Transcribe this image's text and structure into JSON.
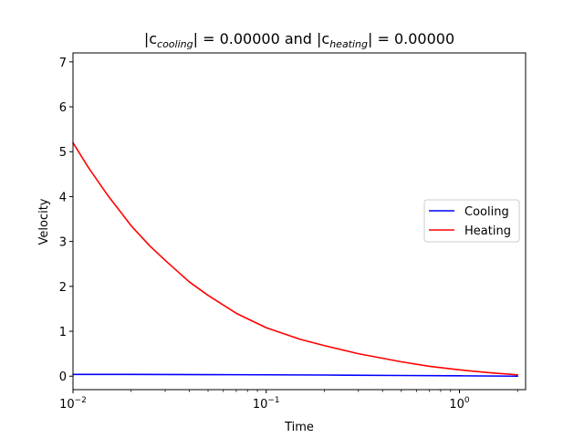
{
  "chart_data": {
    "type": "line",
    "title": {
      "prefix": "|c",
      "sub1": "cooling",
      "mid": "| = 0.00000 and |c",
      "sub2": "heating",
      "suffix": "| = 0.00000"
    },
    "xlabel": "Time",
    "ylabel": "Velocity",
    "xscale": "log",
    "xlim": [
      0.01,
      2.2
    ],
    "ylim": [
      -0.3,
      7.2
    ],
    "yticks": [
      0,
      1,
      2,
      3,
      4,
      5,
      6,
      7
    ],
    "xticks": [
      {
        "value": 0.01,
        "base": "10",
        "exp": "−2"
      },
      {
        "value": 0.1,
        "base": "10",
        "exp": "−1"
      },
      {
        "value": 1,
        "base": "10",
        "exp": "0"
      }
    ],
    "grid": false,
    "legend_position": "center-right",
    "series": [
      {
        "name": "Cooling",
        "color": "#0000ff",
        "x": [
          0.01,
          0.02,
          0.05,
          0.1,
          0.2,
          0.5,
          1.0,
          2.0
        ],
        "y": [
          0.04,
          0.04,
          0.035,
          0.03,
          0.025,
          0.015,
          0.008,
          0.0
        ]
      },
      {
        "name": "Heating",
        "color": "#ff0000",
        "x": [
          0.01,
          0.012,
          0.015,
          0.02,
          0.025,
          0.03,
          0.04,
          0.05,
          0.07,
          0.1,
          0.15,
          0.2,
          0.3,
          0.5,
          0.7,
          1.0,
          1.5,
          2.0
        ],
        "y": [
          5.2,
          4.65,
          4.05,
          3.35,
          2.9,
          2.58,
          2.1,
          1.8,
          1.4,
          1.08,
          0.82,
          0.68,
          0.5,
          0.32,
          0.22,
          0.14,
          0.07,
          0.03
        ]
      }
    ]
  }
}
